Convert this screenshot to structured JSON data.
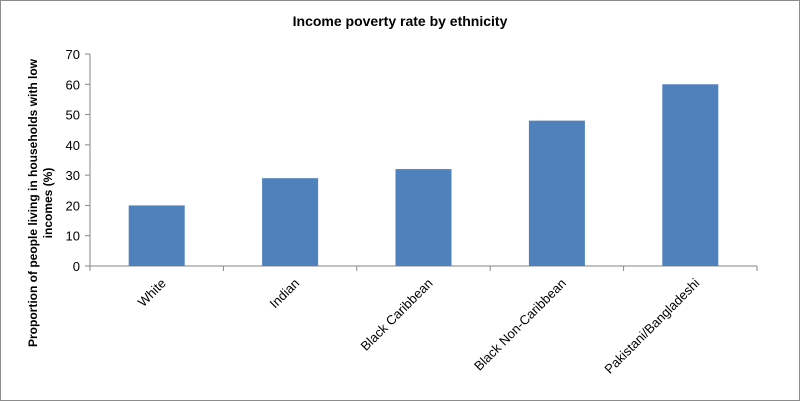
{
  "chart_data": {
    "type": "bar",
    "title": "Income poverty rate by ethnicity",
    "xlabel": "",
    "ylabel": "Proportion of people living in households with low incomes (%)",
    "categories": [
      "White",
      "Indian",
      "Black Caribbean",
      "Black Non-Caribbean",
      "Pakistani/Bangladeshi"
    ],
    "values": [
      20,
      29,
      32,
      48,
      60
    ],
    "ylim": [
      0,
      70
    ],
    "yticks": [
      0,
      10,
      20,
      30,
      40,
      50,
      60,
      70
    ],
    "grid": false,
    "legend": "none",
    "colors": {
      "bar": "#4f81bd",
      "axis": "#868686"
    }
  }
}
